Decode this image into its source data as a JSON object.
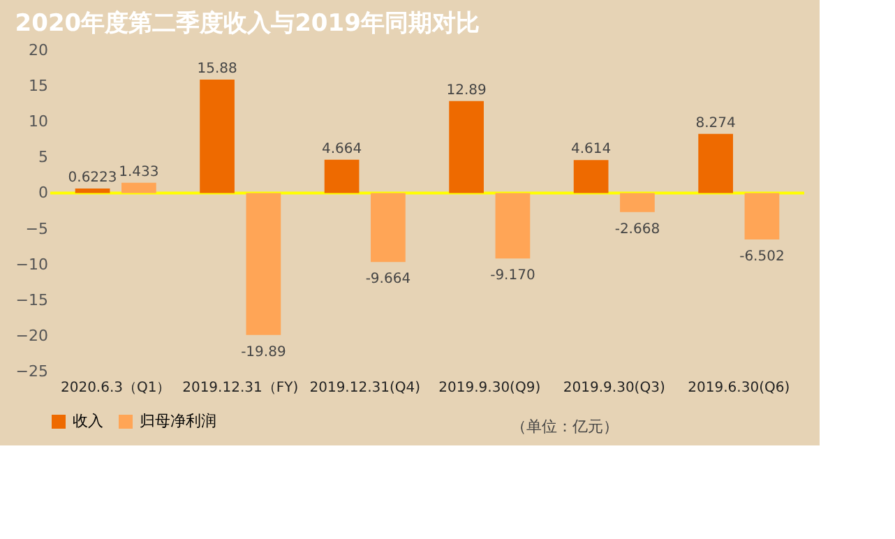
{
  "chart_data": {
    "type": "bar",
    "title": "2020年度第二季度收入与2019年同期对比",
    "categories": [
      "2020.6.3（Q1）",
      "2019.12.31（FY)",
      "2019.12.31(Q4)",
      "2019.9.30(Q9)",
      "2019.9.30(Q3)",
      "2019.6.30(Q6)"
    ],
    "series": [
      {
        "name": "收入",
        "color": "#ee6a00",
        "values": [
          0.6223,
          15.88,
          4.664,
          12.89,
          4.614,
          8.274
        ]
      },
      {
        "name": "归母净利润",
        "color": "#ffa556",
        "values": [
          1.433,
          -19.89,
          -9.664,
          -9.17,
          -2.668,
          -6.502
        ]
      }
    ],
    "value_labels": [
      [
        "0.6223",
        "15.88",
        "4.664",
        "12.89",
        "4.614",
        "8.274"
      ],
      [
        "1.433",
        "-19.89",
        "-9.664",
        "-9.170",
        "-2.668",
        "-6.502"
      ]
    ],
    "ylim": [
      -25,
      20
    ],
    "yticks": [
      -25,
      -20,
      -15,
      -10,
      -5,
      0,
      5,
      10,
      15,
      20
    ],
    "ref_lines": [
      {
        "axis": "y",
        "value": 0,
        "color": "#ffff00"
      }
    ],
    "annotations": [
      "（单位：亿元）"
    ],
    "grid": false,
    "legend": "bottom"
  }
}
